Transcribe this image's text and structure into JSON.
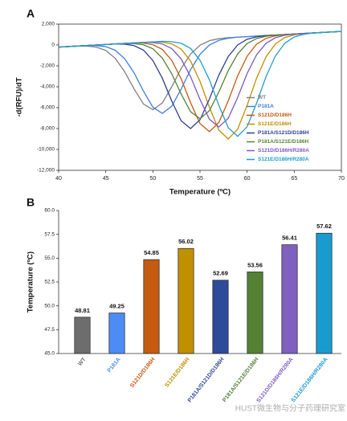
{
  "watermark": "HUST微生物与分子药理研究室",
  "chart_data": [
    {
      "type": "line",
      "panel_label": "A",
      "xlabel": "Temperature (ºC)",
      "ylabel": "-d(RFU)/dT",
      "x": [
        40,
        41,
        42,
        43,
        44,
        45,
        46,
        47,
        48,
        49,
        50,
        51,
        52,
        53,
        54,
        55,
        56,
        57,
        58,
        59,
        60,
        61,
        62,
        63,
        64,
        65,
        66,
        67,
        68,
        69,
        70
      ],
      "xlim": [
        40,
        70
      ],
      "xticks": [
        40,
        45,
        50,
        55,
        60,
        65,
        70
      ],
      "ylim": [
        -12000,
        2000
      ],
      "yticks": [
        {
          "value": 2000,
          "label": "2,000"
        },
        0,
        {
          "value": -2000,
          "label": "-2,000"
        },
        {
          "value": -4000,
          "label": "-4,000"
        },
        {
          "value": -6000,
          "label": "-6,000"
        },
        {
          "value": -8000,
          "label": "-8,000"
        },
        {
          "value": -10000,
          "label": "-10,000"
        },
        {
          "value": -12000,
          "label": "-12,000"
        }
      ],
      "grid": false,
      "legend": "lower right",
      "series": [
        {
          "name": "WT",
          "color": "#808080",
          "values": [
            -200,
            -150,
            -100,
            -100,
            -200,
            -520,
            -1270,
            -2550,
            -4200,
            -5650,
            -6200,
            -5550,
            -4000,
            -2250,
            -870,
            -20,
            410,
            600,
            700,
            750,
            800,
            850,
            900,
            950,
            1000,
            1050,
            1100,
            1150,
            1200,
            1250,
            1300
          ]
        },
        {
          "name": "P181A",
          "color": "#3f7fe0",
          "values": [
            -200,
            -150,
            -100,
            -50,
            -60,
            -160,
            -500,
            -1300,
            -2660,
            -4420,
            -5960,
            -6550,
            -5860,
            -4220,
            -2360,
            -900,
            0,
            440,
            650,
            750,
            800,
            850,
            900,
            950,
            1000,
            1050,
            1100,
            1150,
            1200,
            1250,
            1300
          ]
        },
        {
          "name": "S121D/D186H",
          "color": "#c55a11",
          "values": [
            -200,
            -150,
            -100,
            -50,
            0,
            50,
            100,
            150,
            200,
            180,
            30,
            -420,
            -1470,
            -3240,
            -5530,
            -7520,
            -8300,
            -7420,
            -5330,
            -2940,
            -1070,
            80,
            630,
            880,
            1000,
            1050,
            1100,
            1150,
            1200,
            1250,
            1300
          ]
        },
        {
          "name": "S121E/D186H",
          "color": "#bf9000",
          "values": [
            -200,
            -150,
            -100,
            -50,
            0,
            50,
            100,
            150,
            200,
            250,
            300,
            270,
            110,
            -390,
            -1540,
            -3480,
            -5970,
            -8150,
            -9000,
            -8050,
            -5770,
            -3180,
            -1140,
            110,
            710,
            970,
            1100,
            1150,
            1200,
            1250,
            1300
          ]
        },
        {
          "name": "P181A/S121D/D186H",
          "color": "#2f3f8f",
          "values": [
            -200,
            -150,
            -100,
            -50,
            0,
            50,
            100,
            80,
            -60,
            -490,
            -1490,
            -3180,
            -5360,
            -7260,
            -8000,
            -7160,
            -5160,
            -2880,
            -1090,
            10,
            550,
            780,
            900,
            950,
            1000,
            1050,
            1100,
            1150,
            1200,
            1250,
            1300
          ]
        },
        {
          "name": "P181A/S121E/D186H",
          "color": "#548235",
          "values": [
            -200,
            -150,
            -100,
            -50,
            0,
            50,
            100,
            150,
            140,
            20,
            -360,
            -1250,
            -2750,
            -4700,
            -6390,
            -7050,
            -6290,
            -4500,
            -2450,
            -850,
            140,
            620,
            840,
            950,
            1000,
            1050,
            1100,
            1150,
            1200,
            1250,
            1300
          ]
        },
        {
          "name": "S121D/D186H/R280A",
          "color": "#7e57c2",
          "values": [
            -200,
            -150,
            -100,
            -50,
            0,
            50,
            100,
            150,
            200,
            250,
            230,
            100,
            -340,
            -1340,
            -3030,
            -5210,
            -7110,
            -7850,
            -7010,
            -5010,
            -2730,
            -940,
            160,
            700,
            930,
            1050,
            1100,
            1150,
            1200,
            1250,
            1300
          ]
        },
        {
          "name": "S121E/D186H/R280A",
          "color": "#1f9fcf",
          "values": [
            -200,
            -150,
            -100,
            -50,
            0,
            50,
            100,
            150,
            200,
            250,
            300,
            350,
            320,
            170,
            -330,
            -1450,
            -3340,
            -5780,
            -7920,
            -8750,
            -7820,
            -5580,
            -3040,
            -1050,
            170,
            770,
            1020,
            1150,
            1200,
            1250,
            1300
          ]
        }
      ]
    },
    {
      "type": "bar",
      "panel_label": "B",
      "ylabel": "Temperature (ºC)",
      "categories": [
        "WT",
        "P181A",
        "S121D/D186H",
        "S121E/D186H",
        "P181A/S121D/D186H",
        "P181A/S121E/D186H",
        "S121D/D186H/R280A",
        "S121E/D186H/R280A"
      ],
      "values": [
        48.81,
        49.25,
        54.85,
        56.02,
        52.69,
        53.56,
        56.41,
        57.62
      ],
      "colors": [
        "#6d6d6d",
        "#4d8cf5",
        "#c55a11",
        "#bf9000",
        "#2e4a9a",
        "#548235",
        "#7f5fbf",
        "#1a9bd0"
      ],
      "ylim": [
        45,
        60
      ],
      "yticks": [
        {
          "value": 45,
          "label": "45.0"
        },
        47.5,
        {
          "value": 50,
          "label": "50.0"
        },
        52.5,
        {
          "value": 55,
          "label": "55.0"
        },
        57.5,
        {
          "value": 60,
          "label": "60.0"
        }
      ],
      "grid": false
    }
  ]
}
